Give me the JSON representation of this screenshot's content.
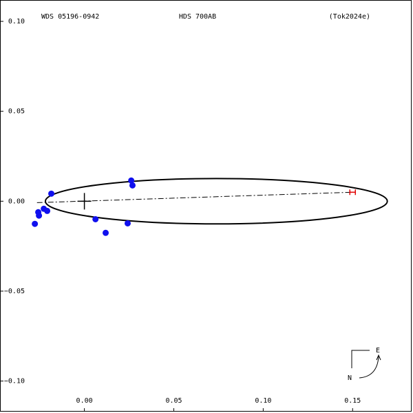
{
  "chart_data": {
    "type": "orbit",
    "title": "WDS 05196-0942",
    "subtitle": "HDS 700AB",
    "reference": "(Tok2024e)",
    "compass": {
      "east": "E",
      "north": "N"
    },
    "xlim": [
      -0.047,
      0.183
    ],
    "ylim": [
      -0.117,
      0.1115
    ],
    "xticks": [
      {
        "value": 0,
        "label": "0.00"
      },
      {
        "value": 0.05,
        "label": "0.05"
      },
      {
        "value": 0.1,
        "label": "0.10"
      },
      {
        "value": 0.15,
        "label": "0.15"
      }
    ],
    "yticks": [
      {
        "value": 0.1,
        "label": "0.10"
      },
      {
        "value": 0.05,
        "label": "0.05"
      },
      {
        "value": 0,
        "label": "0.00"
      },
      {
        "value": -0.05,
        "label": "−0.05"
      },
      {
        "value": -0.1,
        "label": "−0.10"
      }
    ],
    "orbit": {
      "cx": 0.0738,
      "cy": 0,
      "rx": 0.0956,
      "ry": 0.0126,
      "color": "#000000"
    },
    "line_of_nodes": {
      "x": [
        -0.0265,
        0.15
      ],
      "y": [
        -0.0008,
        0.005
      ]
    },
    "periastron": {
      "x": 0.15,
      "y": 0.005,
      "color": "#e00000"
    },
    "series": [
      {
        "color": "#1010ee",
        "x": [
          -0.0277,
          -0.0258,
          -0.0254,
          -0.0227,
          -0.0208,
          -0.0185,
          0.0062,
          0.0119,
          0.0242,
          0.0262,
          0.0269
        ],
        "values": [
          -0.0126,
          -0.0061,
          -0.008,
          -0.0042,
          -0.0054,
          0.0042,
          -0.01,
          -0.0176,
          -0.0123,
          0.0115,
          0.0088
        ]
      }
    ]
  }
}
